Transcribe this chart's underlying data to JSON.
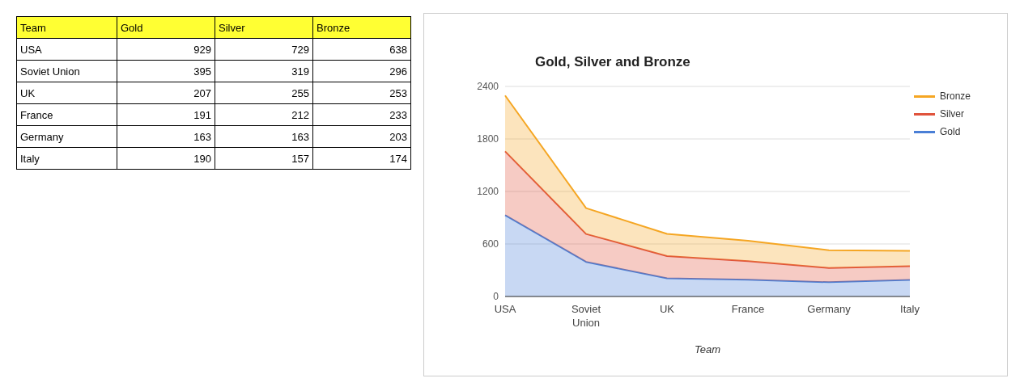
{
  "chart_data": [
    {
      "type": "other",
      "xlabel": "Team",
      "categories": [
        "USA",
        "Soviet Union",
        "UK",
        "France",
        "Germany",
        "Italy"
      ],
      "series": [
        {
          "name": "Gold",
          "values": [
            929,
            395,
            207,
            191,
            163,
            190
          ]
        },
        {
          "name": "Silver",
          "values": [
            729,
            319,
            255,
            212,
            163,
            157
          ]
        },
        {
          "name": "Bronze",
          "values": [
            638,
            296,
            253,
            233,
            203,
            174
          ]
        }
      ],
      "data_labels": true
    },
    {
      "type": "area",
      "title": "Gold, Silver and Bronze",
      "xlabel": "Team",
      "categories": [
        "USA",
        "Soviet Union",
        "UK",
        "France",
        "Germany",
        "Italy"
      ],
      "series": [
        {
          "name": "Gold",
          "color": "#4a7fd6",
          "values": [
            929,
            395,
            207,
            191,
            163,
            190
          ]
        },
        {
          "name": "Silver",
          "color": "#e0533c",
          "values": [
            729,
            319,
            255,
            212,
            163,
            157
          ]
        },
        {
          "name": "Bronze",
          "color": "#f5a623",
          "values": [
            638,
            296,
            253,
            233,
            203,
            174
          ]
        }
      ],
      "stacked": true,
      "ylim": [
        0,
        2400
      ],
      "yticks": [
        0,
        600,
        1200,
        1800,
        2400
      ],
      "grid": "y",
      "legend": "top right"
    }
  ]
}
